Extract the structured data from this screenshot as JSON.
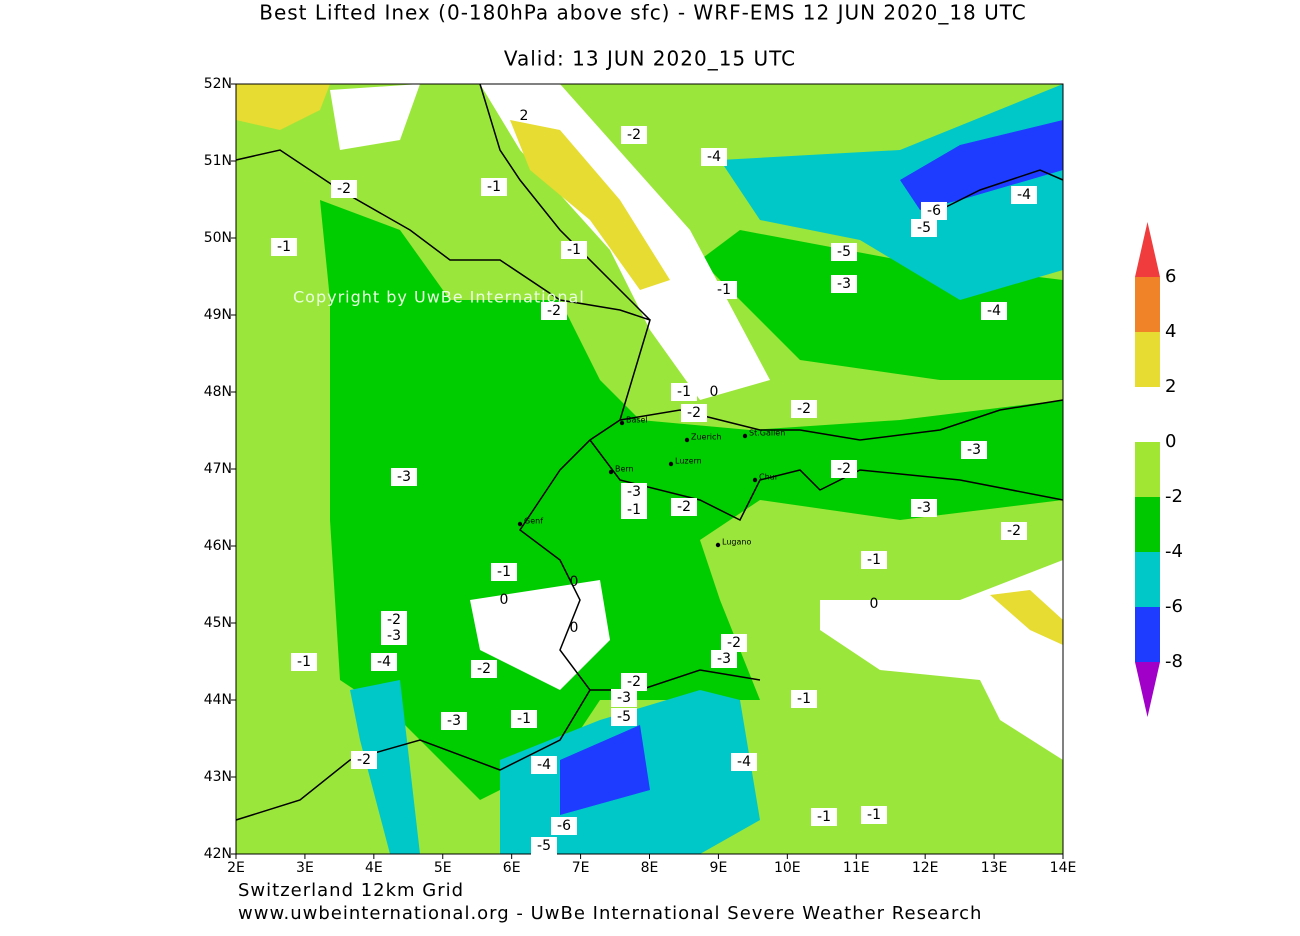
{
  "title": "Best Lifted Inex (0-180hPa above sfc) - WRF-EMS 12 JUN 2020_18 UTC",
  "subtitle": "Valid: 13 JUN 2020_15 UTC",
  "lat_labels": [
    "52N",
    "51N",
    "50N",
    "49N",
    "48N",
    "47N",
    "46N",
    "45N",
    "44N",
    "43N",
    "42N"
  ],
  "lon_labels": [
    "2E",
    "3E",
    "4E",
    "5E",
    "6E",
    "7E",
    "8E",
    "9E",
    "10E",
    "11E",
    "12E",
    "13E",
    "14E"
  ],
  "watermark": "Copyright by UwBe International",
  "footer": [
    "Switzerland 12km Grid",
    "www.uwbeinternational.org - UwBe International Severe Weather Research"
  ],
  "cities": [
    "Basel",
    "Zuerich",
    "St.Gallen",
    "Bern",
    "Luzern",
    "Chur",
    "Genf",
    "Lugano"
  ],
  "contour_labels": [
    "-2",
    "-4",
    "-1",
    "-2",
    "-1",
    "-1",
    "-6",
    "-5",
    "-4",
    "-5",
    "-3",
    "-1",
    "-2",
    "-4",
    "-1",
    "0",
    "-2",
    "-2",
    "-3",
    "-2",
    "-3",
    "-3",
    "-1",
    "-2",
    "-3",
    "-2",
    "-1",
    "-1",
    "0",
    "-2",
    "-3",
    "-2",
    "-3",
    "-1",
    "-4",
    "-2",
    "-2",
    "-3",
    "-5",
    "-1",
    "-3",
    "-1",
    "-2",
    "-4",
    "-4",
    "-6",
    "-1",
    "-1",
    "-5",
    "2",
    "0",
    "0",
    "0"
  ],
  "colorbar": {
    "labels": [
      "6",
      "4",
      "2",
      "0",
      "-2",
      "-4",
      "-6",
      "-8"
    ],
    "colors": [
      "#f03c3c",
      "#f08228",
      "#e6dc32",
      "#ffffff",
      "#a0e632",
      "#00c800",
      "#00c8c8",
      "#1e3cff",
      "#a000c8"
    ]
  }
}
